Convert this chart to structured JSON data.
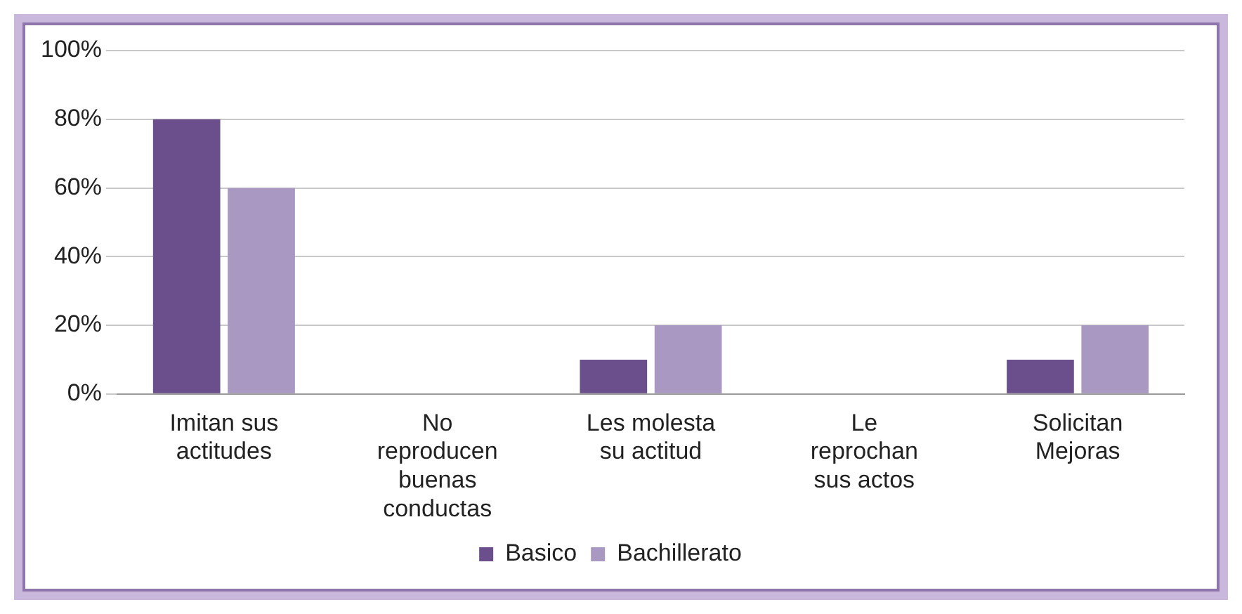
{
  "chart_data": {
    "type": "bar",
    "categories": [
      "Imitan sus actitudes",
      "No reproducen buenas conductas",
      "Les molesta su actitud",
      "Le reprochan sus actos",
      "Solicitan Mejoras"
    ],
    "series": [
      {
        "name": "Basico",
        "color": "#6b4f8c",
        "values": [
          80,
          0,
          10,
          0,
          10
        ]
      },
      {
        "name": "Bachillerato",
        "color": "#a898c2",
        "values": [
          60,
          0,
          20,
          0,
          20
        ]
      }
    ],
    "ylim": [
      0,
      100
    ],
    "yticks": [
      {
        "value": 0,
        "label": "0%"
      },
      {
        "value": 20,
        "label": "20%"
      },
      {
        "value": 40,
        "label": "40%"
      },
      {
        "value": 60,
        "label": "60%"
      },
      {
        "value": 80,
        "label": "80%"
      },
      {
        "value": 100,
        "label": "100%"
      }
    ],
    "grid": "y",
    "legend": "bottom"
  }
}
